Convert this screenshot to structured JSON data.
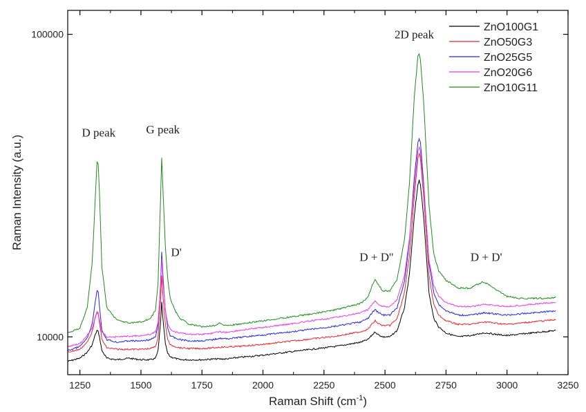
{
  "chart_data": {
    "type": "line",
    "title": "",
    "xlabel": "Raman Shift (cm",
    "xlabel_sup": "-1",
    "xlabel_close": ")",
    "ylabel": "Raman Intensity (a.u.)",
    "yscale": "log",
    "xlim": [
      1200,
      3250
    ],
    "ylim": [
      7500,
      120000
    ],
    "xticks": [
      1250,
      1500,
      1750,
      2000,
      2250,
      2500,
      2750,
      3000,
      3250
    ],
    "yticks": [
      10000,
      100000
    ],
    "grid": false,
    "legend_position": "top-right",
    "x": [
      1200,
      1250,
      1280,
      1300,
      1310,
      1320,
      1325,
      1330,
      1340,
      1360,
      1400,
      1450,
      1500,
      1540,
      1560,
      1570,
      1580,
      1585,
      1590,
      1600,
      1610,
      1620,
      1640,
      1660,
      1700,
      1750,
      1800,
      1820,
      1850,
      1900,
      2000,
      2100,
      2200,
      2300,
      2400,
      2430,
      2450,
      2460,
      2470,
      2490,
      2520,
      2550,
      2580,
      2600,
      2620,
      2635,
      2640,
      2645,
      2660,
      2680,
      2700,
      2720,
      2750,
      2800,
      2850,
      2880,
      2900,
      2920,
      2950,
      3000,
      3050,
      3100,
      3150,
      3200
    ],
    "series": [
      {
        "name": "ZnO100G1",
        "color": "#000000",
        "values": [
          8300,
          8500,
          8900,
          9400,
          10000,
          10500,
          10400,
          10000,
          9000,
          8500,
          8400,
          8500,
          8400,
          8400,
          8500,
          9000,
          11000,
          13000,
          11500,
          9500,
          8800,
          8600,
          8500,
          8400,
          8400,
          8400,
          8450,
          8450,
          8450,
          8550,
          8700,
          8900,
          9100,
          9300,
          9600,
          9800,
          10200,
          10400,
          10200,
          10000,
          10000,
          10500,
          12500,
          16000,
          25000,
          32000,
          33000,
          32000,
          24000,
          14000,
          11500,
          10800,
          10300,
          10000,
          10100,
          10200,
          10300,
          10300,
          10200,
          10100,
          10200,
          10300,
          10400,
          10500
        ]
      },
      {
        "name": "ZnO50G3",
        "color": "#e8262a",
        "values": [
          8900,
          9100,
          9600,
          10400,
          11300,
          12000,
          11900,
          11200,
          9800,
          9200,
          9100,
          9100,
          9100,
          9150,
          9300,
          10000,
          13000,
          16000,
          13800,
          11000,
          9800,
          9400,
          9300,
          9200,
          9150,
          9150,
          9200,
          9250,
          9250,
          9300,
          9450,
          9650,
          9850,
          10050,
          10400,
          10600,
          11100,
          11300,
          11100,
          10900,
          10900,
          11500,
          14000,
          18500,
          29000,
          39000,
          40500,
          39000,
          28000,
          16000,
          12800,
          11800,
          11300,
          11000,
          11000,
          11100,
          11200,
          11200,
          11100,
          11000,
          11100,
          11200,
          11300,
          11400
        ]
      },
      {
        "name": "ZnO25G5",
        "color": "#2323e6",
        "values": [
          9000,
          9300,
          9900,
          11000,
          12500,
          14300,
          14000,
          12700,
          10500,
          9800,
          9600,
          9700,
          9700,
          9800,
          10000,
          10900,
          14800,
          19000,
          16000,
          12300,
          10700,
          10100,
          9900,
          9800,
          9700,
          9700,
          9800,
          9900,
          9850,
          9950,
          10150,
          10350,
          10600,
          10850,
          11200,
          11500,
          12100,
          12300,
          12100,
          11800,
          11800,
          12500,
          15300,
          20500,
          33500,
          44000,
          45000,
          44000,
          31000,
          17600,
          14000,
          12800,
          12200,
          11800,
          11800,
          11900,
          12000,
          12000,
          11900,
          11800,
          11900,
          12000,
          12100,
          12200
        ]
      },
      {
        "name": "ZnO20G6",
        "color": "#e83ce8",
        "values": [
          9300,
          9500,
          10100,
          10700,
          11400,
          12100,
          12000,
          11400,
          10400,
          10000,
          10000,
          10050,
          10100,
          10200,
          10400,
          11200,
          14500,
          18000,
          15300,
          12300,
          11000,
          10600,
          10400,
          10300,
          10200,
          10200,
          10300,
          10400,
          10350,
          10500,
          10750,
          11000,
          11300,
          11600,
          12000,
          12300,
          12900,
          13100,
          12900,
          12600,
          12600,
          13300,
          16000,
          21000,
          31000,
          41000,
          42500,
          41000,
          30000,
          18000,
          14800,
          13600,
          13000,
          12600,
          12600,
          12700,
          12800,
          12800,
          12700,
          12600,
          12700,
          12800,
          12900,
          13000
        ]
      },
      {
        "name": "ZnO10G11",
        "color": "#1f8a1f",
        "values": [
          10300,
          10700,
          12500,
          17500,
          25500,
          38000,
          37000,
          30000,
          17000,
          12500,
          11400,
          11100,
          11200,
          11500,
          12300,
          15000,
          28000,
          39000,
          31000,
          20000,
          15500,
          13400,
          12200,
          11500,
          11000,
          10800,
          10900,
          11100,
          10900,
          11000,
          11300,
          11600,
          11900,
          12300,
          12900,
          13500,
          15000,
          15500,
          15000,
          14200,
          14200,
          15500,
          21000,
          32000,
          62000,
          85000,
          86000,
          83000,
          57000,
          27500,
          18800,
          16500,
          15400,
          14500,
          14500,
          14900,
          15200,
          15000,
          14400,
          13600,
          13400,
          13400,
          13400,
          13500
        ]
      }
    ],
    "annotations": [
      {
        "text": "D peak",
        "x": 1327,
        "y": 46000
      },
      {
        "text": "G peak",
        "x": 1590,
        "y": 47000
      },
      {
        "text": "D'",
        "x": 1645,
        "y": 18500
      },
      {
        "text": "2D peak",
        "x": 2620,
        "y": 97000
      },
      {
        "text": "D + D''",
        "x": 2465,
        "y": 17800
      },
      {
        "text": "D + D'",
        "x": 2915,
        "y": 17800
      }
    ]
  }
}
